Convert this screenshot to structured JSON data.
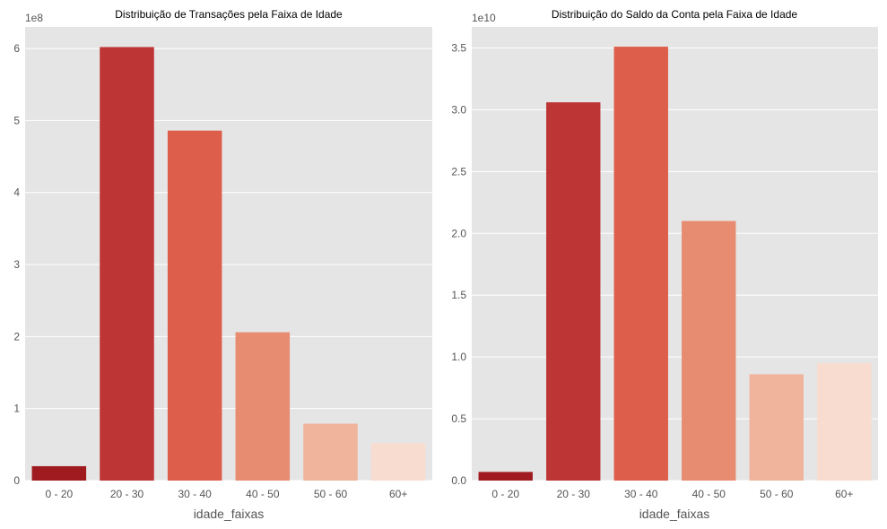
{
  "colors": {
    "panel_bg": "#e5e5e5",
    "grid": "#ffffff",
    "bars": [
      "#9f1b1f",
      "#be3536",
      "#dd5f4b",
      "#e88c71",
      "#f0b39b",
      "#f8dccf"
    ]
  },
  "chart_data": [
    {
      "type": "bar",
      "title": "Distribuição de Transações pela Faixa de Idade",
      "xlabel": "idade_faixas",
      "ylabel": "",
      "y_offset_label": "1e8",
      "categories": [
        "0 - 20",
        "20 - 30",
        "30 - 40",
        "40 - 50",
        "50 - 60",
        "60+"
      ],
      "values": [
        20000000,
        602000000,
        486000000,
        206000000,
        79000000,
        52000000
      ],
      "ylim": [
        0,
        630000000
      ],
      "y_ticks": [
        0,
        100000000,
        200000000,
        300000000,
        400000000,
        500000000,
        600000000
      ],
      "y_tick_labels": [
        "0",
        "1",
        "2",
        "3",
        "4",
        "5",
        "6"
      ],
      "grid": true,
      "legend": "none"
    },
    {
      "type": "bar",
      "title": "Distribuição do Saldo da Conta pela Faixa de Idade",
      "xlabel": "idade_faixas",
      "ylabel": "",
      "y_offset_label": "1e10",
      "categories": [
        "0 - 20",
        "20 - 30",
        "30 - 40",
        "40 - 50",
        "50 - 60",
        "60+"
      ],
      "values": [
        700000000,
        30600000000,
        35100000000,
        21000000000,
        8600000000,
        9500000000
      ],
      "ylim": [
        0,
        36700000000
      ],
      "y_ticks": [
        0,
        5000000000,
        10000000000,
        15000000000,
        20000000000,
        25000000000,
        30000000000,
        35000000000
      ],
      "y_tick_labels": [
        "0.0",
        "0.5",
        "1.0",
        "1.5",
        "2.0",
        "2.5",
        "3.0",
        "3.5"
      ],
      "grid": true,
      "legend": "none"
    }
  ]
}
